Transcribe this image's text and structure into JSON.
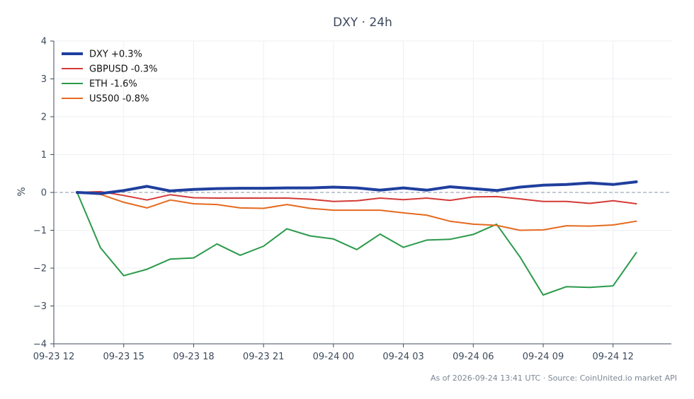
{
  "chart_data": {
    "type": "line",
    "title": "DXY · 24h",
    "xlabel": "",
    "ylabel": "%",
    "ylim": [
      -4,
      4
    ],
    "yticks": [
      4,
      3,
      2,
      1,
      0,
      -1,
      -2,
      -3,
      -4
    ],
    "x_tick_labels": [
      "09-23 12",
      "09-23 15",
      "09-23 18",
      "09-23 21",
      "09-24 00",
      "09-24 03",
      "09-24 06",
      "09-24 09",
      "09-24 12"
    ],
    "x_hours": [
      13,
      14,
      15,
      16,
      17,
      18,
      19,
      20,
      21,
      22,
      23,
      24,
      25,
      26,
      27,
      28,
      29,
      30,
      31,
      32,
      33,
      34,
      35,
      36,
      37
    ],
    "grid": true,
    "legend_position": "top-left",
    "zero_line": true,
    "series": [
      {
        "name": "DXY +0.3%",
        "color": "#1f3f9e",
        "width": 4,
        "values": [
          0.0,
          -0.03,
          0.05,
          0.16,
          0.04,
          0.08,
          0.1,
          0.11,
          0.11,
          0.12,
          0.12,
          0.14,
          0.12,
          0.06,
          0.12,
          0.06,
          0.15,
          0.1,
          0.05,
          0.14,
          0.19,
          0.21,
          0.25,
          0.21,
          0.28
        ]
      },
      {
        "name": "GBPUSD -0.3%",
        "color": "#d43a36",
        "width": 2,
        "values": [
          0.0,
          0.02,
          -0.08,
          -0.2,
          -0.06,
          -0.14,
          -0.15,
          -0.15,
          -0.15,
          -0.15,
          -0.18,
          -0.24,
          -0.22,
          -0.15,
          -0.19,
          -0.15,
          -0.21,
          -0.12,
          -0.11,
          -0.17,
          -0.24,
          -0.24,
          -0.29,
          -0.22,
          -0.3
        ]
      },
      {
        "name": "ETH -1.6%",
        "color": "#2a9a4a",
        "width": 2,
        "values": [
          0.0,
          -1.46,
          -2.2,
          -2.03,
          -1.76,
          -1.73,
          -1.36,
          -1.66,
          -1.42,
          -0.96,
          -1.15,
          -1.23,
          -1.51,
          -1.1,
          -1.45,
          -1.26,
          -1.24,
          -1.11,
          -0.84,
          -1.7,
          -2.71,
          -2.49,
          -2.51,
          -2.47,
          -1.59
        ]
      },
      {
        "name": "US500 -0.8%",
        "color": "#e56a1f",
        "width": 2,
        "values": [
          0.0,
          -0.05,
          -0.26,
          -0.41,
          -0.2,
          -0.3,
          -0.32,
          -0.41,
          -0.42,
          -0.32,
          -0.42,
          -0.47,
          -0.47,
          -0.47,
          -0.54,
          -0.6,
          -0.76,
          -0.84,
          -0.87,
          -1.0,
          -0.99,
          -0.88,
          -0.89,
          -0.86,
          -0.76
        ]
      }
    ]
  },
  "footer": "As of 2026-09-24 13:41 UTC · Source: CoinUnited.io market API"
}
